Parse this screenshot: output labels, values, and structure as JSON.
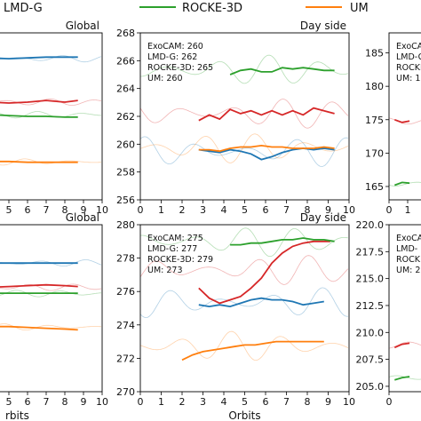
{
  "legend": {
    "entries": [
      {
        "label": "LMD-G",
        "color": "#d62728"
      },
      {
        "label": "ROCKE-3D",
        "color": "#2ca02c"
      },
      {
        "label": "UM",
        "color": "#ff7f0e"
      }
    ]
  },
  "colors": {
    "exocam": "#1f77b4",
    "lmdg": "#d62728",
    "rocke": "#2ca02c",
    "um": "#ff7f0e"
  },
  "xlabel_bottom": "Orbits",
  "chart_data": [
    {
      "type": "line",
      "title": "Global",
      "xlim": [
        0,
        10
      ],
      "ylim": [
        255,
        275
      ],
      "xticks": [
        5,
        6,
        7,
        8,
        9,
        10
      ],
      "yticks": [],
      "series": [
        {
          "key": "exocam",
          "x": [
            0,
            1,
            2,
            3,
            4,
            5,
            6,
            7,
            8,
            8.7
          ],
          "y": [
            271.6,
            271.7,
            271.8,
            271.9,
            272.0,
            271.9,
            272.0,
            272.1,
            272.1,
            272.1
          ]
        },
        {
          "key": "lmdg",
          "x": [
            0,
            1,
            2,
            3,
            4,
            5,
            6,
            7,
            8,
            8.7
          ],
          "y": [
            266.6,
            266.6,
            266.7,
            266.6,
            266.7,
            266.6,
            266.7,
            266.9,
            266.7,
            266.9
          ]
        },
        {
          "key": "rocke",
          "x": [
            0,
            1,
            2,
            3,
            4,
            5,
            6,
            7,
            8,
            8.7
          ],
          "y": [
            265.6,
            265.5,
            265.4,
            265.3,
            265.2,
            265.1,
            265.0,
            265.0,
            264.9,
            264.9
          ]
        },
        {
          "key": "um",
          "x": [
            0,
            1,
            2,
            3,
            4,
            5,
            6,
            7,
            8,
            8.7
          ],
          "y": [
            259.6,
            259.6,
            259.6,
            259.6,
            259.6,
            259.6,
            259.5,
            259.5,
            259.5,
            259.5
          ]
        }
      ]
    },
    {
      "type": "line",
      "title": "Day side",
      "xlim": [
        0,
        10
      ],
      "ylim": [
        256,
        268
      ],
      "xticks": [
        0,
        1,
        2,
        3,
        4,
        5,
        6,
        7,
        8,
        9,
        10
      ],
      "yticks": [
        256,
        258,
        260,
        262,
        264,
        266,
        268
      ],
      "annotations": [
        "ExoCAM: 260",
        "LMD-G: 262",
        "ROCKE-3D: 265",
        "UM: 260"
      ],
      "series": [
        {
          "key": "exocam",
          "x": [
            2.8,
            3.3,
            3.8,
            4.3,
            4.8,
            5.3,
            5.8,
            6.3,
            6.8,
            7.3,
            7.8,
            8.3,
            8.8,
            9.3
          ],
          "y": [
            259.6,
            259.5,
            259.4,
            259.6,
            259.5,
            259.3,
            258.9,
            259.1,
            259.4,
            259.6,
            259.7,
            259.6,
            259.7,
            259.6
          ]
        },
        {
          "key": "lmdg",
          "x": [
            2.8,
            3.3,
            3.8,
            4.3,
            4.8,
            5.3,
            5.8,
            6.3,
            6.8,
            7.3,
            7.8,
            8.3,
            8.8,
            9.3
          ],
          "y": [
            261.7,
            262.1,
            261.8,
            262.5,
            262.2,
            262.4,
            262.1,
            262.4,
            262.1,
            262.4,
            262.1,
            262.6,
            262.4,
            262.2
          ]
        },
        {
          "key": "rocke",
          "x": [
            4.3,
            4.8,
            5.3,
            5.8,
            6.3,
            6.8,
            7.3,
            7.8,
            8.3,
            8.8,
            9.3
          ],
          "y": [
            265.0,
            265.3,
            265.4,
            265.2,
            265.2,
            265.5,
            265.4,
            265.5,
            265.4,
            265.3,
            265.3
          ]
        },
        {
          "key": "um",
          "x": [
            2.8,
            3.3,
            3.8,
            4.3,
            4.8,
            5.3,
            5.8,
            6.3,
            6.8,
            7.3,
            7.8,
            8.3,
            8.8,
            9.3
          ],
          "y": [
            259.6,
            259.6,
            259.5,
            259.7,
            259.8,
            259.8,
            259.9,
            259.8,
            259.8,
            259.7,
            259.7,
            259.7,
            259.8,
            259.7
          ]
        }
      ]
    },
    {
      "type": "line",
      "title": "",
      "xlim": [
        0,
        10
      ],
      "ylim": [
        163,
        188
      ],
      "xticks": [
        0,
        1
      ],
      "yticks": [
        165,
        170,
        175,
        180,
        185
      ],
      "annotations": [
        "ExoCAM",
        "LMD-G",
        "ROCKE",
        "UM: 1"
      ],
      "series": [
        {
          "key": "lmdg",
          "x": [
            0.3,
            0.7,
            1.1
          ],
          "y": [
            175.0,
            174.6,
            174.8
          ]
        },
        {
          "key": "rocke",
          "x": [
            0.3,
            0.7,
            1.1
          ],
          "y": [
            165.2,
            165.6,
            165.5
          ]
        }
      ]
    },
    {
      "type": "line",
      "title": "Global",
      "xlim": [
        0,
        10
      ],
      "ylim": [
        265,
        285
      ],
      "xticks": [
        5,
        6,
        7,
        8,
        9,
        10
      ],
      "yticks": [],
      "xlabel": "rbits",
      "series": [
        {
          "key": "exocam",
          "x": [
            0,
            1,
            2,
            3,
            4,
            5,
            6,
            7,
            8,
            8.7
          ],
          "y": [
            280.4,
            280.4,
            280.4,
            280.4,
            280.4,
            280.4,
            280.4,
            280.4,
            280.4,
            280.4
          ]
        },
        {
          "key": "lmdg",
          "x": [
            0,
            1,
            2,
            3,
            4,
            5,
            6,
            7,
            8,
            8.7
          ],
          "y": [
            277.2,
            277.3,
            277.3,
            277.4,
            277.5,
            277.6,
            277.7,
            277.8,
            277.7,
            277.6
          ]
        },
        {
          "key": "rocke",
          "x": [
            0,
            1,
            2,
            3,
            4,
            5,
            6,
            7,
            8,
            8.7
          ],
          "y": [
            276.6,
            276.7,
            276.7,
            276.8,
            276.8,
            276.8,
            276.8,
            276.8,
            276.8,
            276.8
          ]
        },
        {
          "key": "um",
          "x": [
            0,
            1,
            2,
            3,
            4,
            5,
            6,
            7,
            8,
            8.7
          ],
          "y": [
            272.9,
            272.9,
            272.9,
            272.8,
            272.8,
            272.8,
            272.7,
            272.6,
            272.5,
            272.4
          ]
        }
      ]
    },
    {
      "type": "line",
      "title": "Day side",
      "xlim": [
        0,
        10
      ],
      "ylim": [
        270,
        280
      ],
      "xticks": [
        0,
        1,
        2,
        3,
        4,
        5,
        6,
        7,
        8,
        9,
        10
      ],
      "yticks": [
        270,
        272,
        274,
        276,
        278,
        280
      ],
      "xlabel": "Orbits",
      "annotations": [
        "ExoCAM: 275",
        "LMD-G: 277",
        "ROCKE-3D: 279",
        "UM: 273"
      ],
      "series": [
        {
          "key": "exocam",
          "x": [
            2.8,
            3.3,
            3.8,
            4.3,
            4.8,
            5.3,
            5.8,
            6.3,
            6.8,
            7.3,
            7.8,
            8.3,
            8.8
          ],
          "y": [
            275.2,
            275.1,
            275.2,
            275.1,
            275.3,
            275.5,
            275.6,
            275.5,
            275.5,
            275.4,
            275.2,
            275.3,
            275.4
          ]
        },
        {
          "key": "lmdg",
          "x": [
            2.8,
            3.3,
            3.8,
            4.3,
            4.8,
            5.3,
            5.8,
            6.3,
            6.8,
            7.3,
            7.8,
            8.3,
            8.8,
            9.1
          ],
          "y": [
            276.2,
            275.6,
            275.3,
            275.5,
            275.7,
            276.2,
            276.8,
            277.7,
            278.3,
            278.7,
            278.9,
            279.0,
            279.0,
            279.0
          ]
        },
        {
          "key": "rocke",
          "x": [
            4.3,
            4.8,
            5.3,
            5.8,
            6.3,
            6.8,
            7.3,
            7.8,
            8.3,
            8.8,
            9.3
          ],
          "y": [
            278.8,
            278.8,
            278.9,
            278.9,
            279.0,
            279.1,
            279.1,
            279.2,
            279.1,
            279.1,
            279.0
          ]
        },
        {
          "key": "um",
          "x": [
            2.0,
            2.5,
            3.0,
            3.5,
            4.0,
            4.5,
            5.0,
            5.5,
            6.0,
            6.5,
            7.0,
            7.5,
            8.0,
            8.5,
            8.8
          ],
          "y": [
            271.9,
            272.2,
            272.4,
            272.5,
            272.6,
            272.7,
            272.8,
            272.8,
            272.9,
            273.0,
            273.0,
            273.0,
            273.0,
            273.0,
            273.0
          ]
        }
      ]
    },
    {
      "type": "line",
      "title": "",
      "xlim": [
        0,
        10
      ],
      "ylim": [
        204.5,
        220
      ],
      "xticks": [
        0
      ],
      "yticks": [
        205.0,
        207.5,
        210.0,
        212.5,
        215.0,
        217.5,
        220.0
      ],
      "annotations": [
        "ExoCA",
        "LMD-",
        "ROCK",
        "UM: 2"
      ],
      "series": [
        {
          "key": "lmdg",
          "x": [
            0.3,
            0.7,
            1.1
          ],
          "y": [
            208.6,
            208.9,
            209.0
          ]
        },
        {
          "key": "rocke",
          "x": [
            0.3,
            0.7,
            1.1
          ],
          "y": [
            205.6,
            205.8,
            205.9
          ]
        }
      ]
    }
  ]
}
